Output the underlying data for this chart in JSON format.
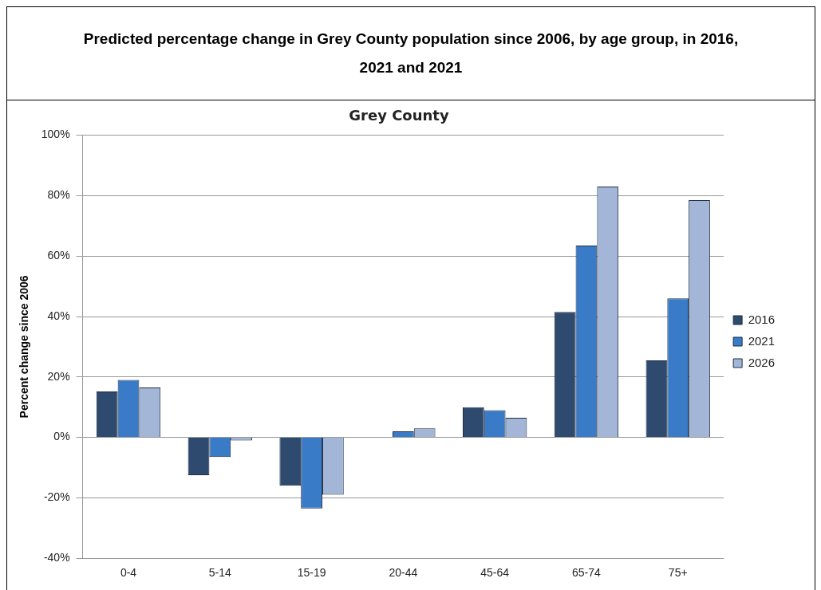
{
  "chart_data": {
    "type": "bar",
    "title": "Predicted percentage change in Grey County population since 2006, by age group, in 2016, 2021 and 2021",
    "subtitle": "Grey County",
    "ylabel": "Percent change since 2006",
    "categories": [
      "0-4",
      "5-14",
      "15-19",
      "20-44",
      "45-64",
      "65-74",
      "75+"
    ],
    "series": [
      {
        "name": "2016",
        "color": "#2e4a6e",
        "values": [
          15.2,
          -12.5,
          -16,
          0,
          10,
          41.5,
          25.5
        ]
      },
      {
        "name": "2021",
        "color": "#3a7bc8",
        "values": [
          19,
          -6.5,
          -23.5,
          2,
          9,
          63.5,
          46
        ]
      },
      {
        "name": "2026",
        "color": "#a3b6d8",
        "values": [
          16.5,
          -1,
          -19,
          3,
          6.5,
          83,
          78.5
        ]
      }
    ],
    "ylim": [
      -40,
      100
    ],
    "yticks": [
      {
        "value": -40,
        "label": "-40%"
      },
      {
        "value": -20,
        "label": "-20%"
      },
      {
        "value": 0,
        "label": "0%"
      },
      {
        "value": 20,
        "label": "20%"
      },
      {
        "value": 40,
        "label": "40%"
      },
      {
        "value": 60,
        "label": "60%"
      },
      {
        "value": 80,
        "label": "80%"
      },
      {
        "value": 100,
        "label": "100%"
      }
    ],
    "grid": "y",
    "legend": "right"
  }
}
